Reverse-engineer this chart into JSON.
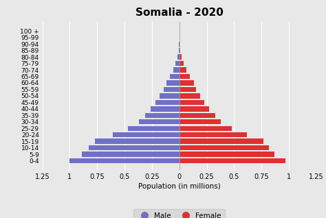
{
  "title": "Somalia - 2020",
  "xlabel": "Population (in millions)",
  "age_groups": [
    "0-4",
    "5-9",
    "10-14",
    "15-19",
    "20-24",
    "25-29",
    "30-34",
    "35-39",
    "40-44",
    "45-49",
    "50-54",
    "55-59",
    "60-64",
    "65-69",
    "70-74",
    "75-79",
    "80-84",
    "85-89",
    "90-94",
    "95-99",
    "100 +"
  ],
  "male": [
    1.0,
    0.89,
    0.83,
    0.77,
    0.61,
    0.47,
    0.37,
    0.31,
    0.26,
    0.22,
    0.18,
    0.145,
    0.115,
    0.085,
    0.055,
    0.033,
    0.016,
    0.006,
    0.002,
    0.0008,
    0.0002
  ],
  "female": [
    0.97,
    0.87,
    0.82,
    0.77,
    0.62,
    0.48,
    0.38,
    0.33,
    0.27,
    0.23,
    0.19,
    0.155,
    0.135,
    0.095,
    0.065,
    0.042,
    0.022,
    0.008,
    0.003,
    0.001,
    0.0003
  ],
  "male_color": "#7070c8",
  "female_color": "#e03030",
  "bg_color": "#e8e8e8",
  "xlim": 1.25,
  "title_fontsize": 11,
  "label_fontsize": 7.5,
  "tick_fontsize": 7,
  "ytick_fontsize": 6.5
}
